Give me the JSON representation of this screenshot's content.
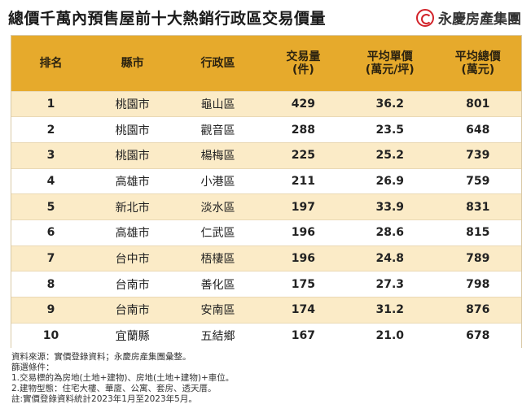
{
  "title": "總價千萬內預售屋前十大熱銷行政區交易價量",
  "brand": {
    "name": "永慶房產集團",
    "logo_icon": "yungching-logo-icon",
    "logo_color": "#d2232a"
  },
  "colors": {
    "header": "#e6aa2c",
    "stripe": "#fbebc7"
  },
  "table": {
    "headers": [
      {
        "line1": "排名",
        "line2": ""
      },
      {
        "line1": "縣市",
        "line2": ""
      },
      {
        "line1": "行政區",
        "line2": ""
      },
      {
        "line1": "交易量",
        "line2": "(件)"
      },
      {
        "line1": "平均單價",
        "line2": "(萬元/坪)"
      },
      {
        "line1": "平均總價",
        "line2": "(萬元)"
      }
    ],
    "rows": [
      [
        "1",
        "桃園市",
        "龜山區",
        "429",
        "36.2",
        "801"
      ],
      [
        "2",
        "桃園市",
        "觀音區",
        "288",
        "23.5",
        "648"
      ],
      [
        "3",
        "桃園市",
        "楊梅區",
        "225",
        "25.2",
        "739"
      ],
      [
        "4",
        "高雄市",
        "小港區",
        "211",
        "26.9",
        "759"
      ],
      [
        "5",
        "新北市",
        "淡水區",
        "197",
        "33.9",
        "831"
      ],
      [
        "6",
        "高雄市",
        "仁武區",
        "196",
        "28.6",
        "815"
      ],
      [
        "7",
        "台中市",
        "梧棲區",
        "196",
        "24.8",
        "789"
      ],
      [
        "8",
        "台南市",
        "善化區",
        "175",
        "27.3",
        "798"
      ],
      [
        "9",
        "台南市",
        "安南區",
        "174",
        "31.2",
        "876"
      ],
      [
        "10",
        "宜蘭縣",
        "五結鄉",
        "167",
        "21.0",
        "678"
      ]
    ]
  },
  "notes": [
    "資料來源：實價登錄資料；永慶房產集團彙整。",
    "篩選條件：",
    "1.交易標的為房地(土地+建物)、房地(土地+建物)+車位。",
    "2.建物型態：住宅大樓、華廈、公寓、套房、透天厝。",
    "註:實價登錄資料統計2023年1月至2023年5月。"
  ]
}
